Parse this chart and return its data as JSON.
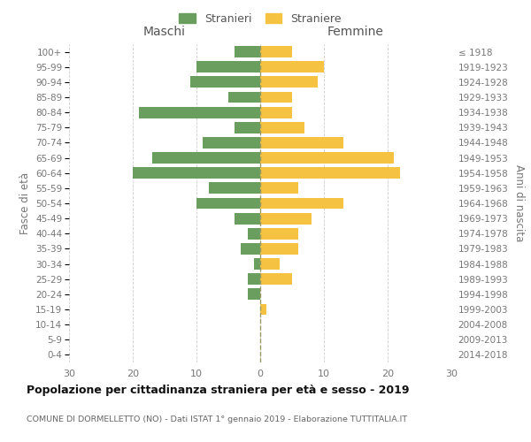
{
  "age_groups": [
    "0-4",
    "5-9",
    "10-14",
    "15-19",
    "20-24",
    "25-29",
    "30-34",
    "35-39",
    "40-44",
    "45-49",
    "50-54",
    "55-59",
    "60-64",
    "65-69",
    "70-74",
    "75-79",
    "80-84",
    "85-89",
    "90-94",
    "95-99",
    "100+"
  ],
  "birth_years": [
    "2014-2018",
    "2009-2013",
    "2004-2008",
    "1999-2003",
    "1994-1998",
    "1989-1993",
    "1984-1988",
    "1979-1983",
    "1974-1978",
    "1969-1973",
    "1964-1968",
    "1959-1963",
    "1954-1958",
    "1949-1953",
    "1944-1948",
    "1939-1943",
    "1934-1938",
    "1929-1933",
    "1924-1928",
    "1919-1923",
    "≤ 1918"
  ],
  "maschi": [
    4,
    10,
    11,
    5,
    19,
    4,
    9,
    17,
    20,
    8,
    10,
    4,
    2,
    3,
    1,
    2,
    2,
    0,
    0,
    0,
    0
  ],
  "femmine": [
    5,
    10,
    9,
    5,
    5,
    7,
    13,
    21,
    22,
    6,
    13,
    8,
    6,
    6,
    3,
    5,
    0,
    1,
    0,
    0,
    0
  ],
  "maschi_color": "#6a9e5e",
  "femmine_color": "#f5c242",
  "bg_color": "#ffffff",
  "grid_color": "#cccccc",
  "title": "Popolazione per cittadinanza straniera per età e sesso - 2019",
  "subtitle": "COMUNE DI DORMELLETTO (NO) - Dati ISTAT 1° gennaio 2019 - Elaborazione TUTTITALIA.IT",
  "xlabel_left": "Maschi",
  "xlabel_right": "Femmine",
  "ylabel_left": "Fasce di età",
  "ylabel_right": "Anni di nascita",
  "legend_maschi": "Stranieri",
  "legend_femmine": "Straniere",
  "xlim": 30,
  "bar_height": 0.75
}
